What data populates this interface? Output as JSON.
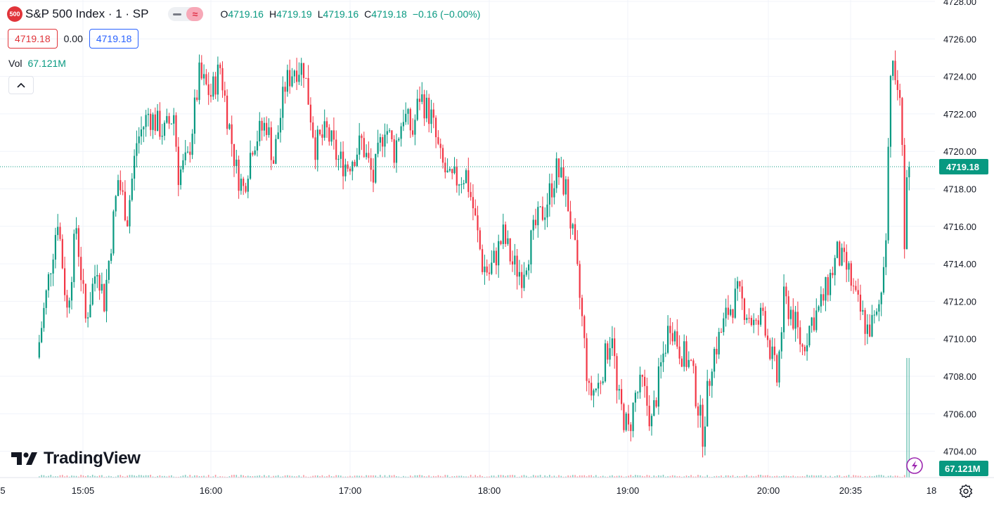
{
  "header": {
    "badge": "500",
    "symbol_title": "S&P 500 Index · 1 · SP",
    "ohlc": {
      "o_label": "O",
      "o": "4719.16",
      "h_label": "H",
      "h": "4719.19",
      "l_label": "L",
      "l": "4719.16",
      "c_label": "C",
      "c": "4719.18",
      "change": "−0.16 (−0.00%)"
    }
  },
  "prices": {
    "sell": "4719.18",
    "spread": "0.00",
    "buy": "4719.18"
  },
  "volume_legend": {
    "label": "Vol",
    "value": "67.121M"
  },
  "logo_text": "TradingView",
  "chart_data": {
    "type": "candlestick",
    "y_axis": {
      "ticks": [
        "4728.00",
        "4726.00",
        "4724.00",
        "4722.00",
        "4720.00",
        "4718.00",
        "4716.00",
        "4714.00",
        "4712.00",
        "4710.00",
        "4708.00",
        "4706.00",
        "4704.00"
      ],
      "range": [
        4703.5,
        4728
      ]
    },
    "x_axis": {
      "ticks": [
        "5",
        "15:05",
        "16:00",
        "17:00",
        "18:00",
        "19:00",
        "20:00",
        "20:35",
        "18"
      ]
    },
    "last_price": {
      "value": 4719.18,
      "label": "4719.18"
    },
    "last_volume": {
      "label": "67.121M"
    },
    "price_path": [
      {
        "t": "14:45",
        "p": 4709
      },
      {
        "t": "14:54",
        "p": 4716.5
      },
      {
        "t": "14:58",
        "p": 4711.5
      },
      {
        "t": "15:02",
        "p": 4716
      },
      {
        "t": "15:06",
        "p": 4711
      },
      {
        "t": "15:11",
        "p": 4714
      },
      {
        "t": "15:14",
        "p": 4712
      },
      {
        "t": "15:20",
        "p": 4718.5
      },
      {
        "t": "15:24",
        "p": 4716.5
      },
      {
        "t": "15:28",
        "p": 4720.5
      },
      {
        "t": "15:33",
        "p": 4722
      },
      {
        "t": "15:40",
        "p": 4721
      },
      {
        "t": "15:44",
        "p": 4722
      },
      {
        "t": "15:46",
        "p": 4718.8
      },
      {
        "t": "15:50",
        "p": 4719.5
      },
      {
        "t": "15:55",
        "p": 4724
      },
      {
        "t": "16:00",
        "p": 4723
      },
      {
        "t": "16:04",
        "p": 4724.5
      },
      {
        "t": "16:07",
        "p": 4722
      },
      {
        "t": "16:11",
        "p": 4719
      },
      {
        "t": "16:14",
        "p": 4718
      },
      {
        "t": "16:18",
        "p": 4720.5
      },
      {
        "t": "16:24",
        "p": 4721.5
      },
      {
        "t": "16:27",
        "p": 4719.5
      },
      {
        "t": "16:32",
        "p": 4723.5
      },
      {
        "t": "16:36",
        "p": 4724.5
      },
      {
        "t": "16:40",
        "p": 4724.5
      },
      {
        "t": "16:45",
        "p": 4720.3
      },
      {
        "t": "16:50",
        "p": 4721
      },
      {
        "t": "16:55",
        "p": 4719.5
      },
      {
        "t": "16:59",
        "p": 4719.3
      },
      {
        "t": "17:05",
        "p": 4720.5
      },
      {
        "t": "17:10",
        "p": 4718.5
      },
      {
        "t": "17:15",
        "p": 4721.5
      },
      {
        "t": "17:19",
        "p": 4720
      },
      {
        "t": "17:23",
        "p": 4722
      },
      {
        "t": "17:27",
        "p": 4721
      },
      {
        "t": "17:30",
        "p": 4723
      },
      {
        "t": "17:35",
        "p": 4721.8
      },
      {
        "t": "17:39",
        "p": 4719.5
      },
      {
        "t": "17:43",
        "p": 4718.3
      },
      {
        "t": "17:50",
        "p": 4718.8
      },
      {
        "t": "17:53",
        "p": 4717
      },
      {
        "t": "17:57",
        "p": 4714
      },
      {
        "t": "18:00",
        "p": 4713.5
      },
      {
        "t": "18:06",
        "p": 4715.5
      },
      {
        "t": "18:10",
        "p": 4714
      },
      {
        "t": "18:14",
        "p": 4713.5
      },
      {
        "t": "18:20",
        "p": 4716
      },
      {
        "t": "18:24",
        "p": 4717
      },
      {
        "t": "18:29",
        "p": 4719
      },
      {
        "t": "18:33",
        "p": 4718
      },
      {
        "t": "18:37",
        "p": 4714.5
      },
      {
        "t": "18:40",
        "p": 4711
      },
      {
        "t": "18:43",
        "p": 4707
      },
      {
        "t": "18:47",
        "p": 4707.5
      },
      {
        "t": "18:53",
        "p": 4710.5
      },
      {
        "t": "18:55",
        "p": 4707
      },
      {
        "t": "19:00",
        "p": 4705
      },
      {
        "t": "19:03",
        "p": 4707
      },
      {
        "t": "19:06",
        "p": 4707.5
      },
      {
        "t": "19:10",
        "p": 4705.5
      },
      {
        "t": "19:14",
        "p": 4708.5
      },
      {
        "t": "19:18",
        "p": 4711
      },
      {
        "t": "19:22",
        "p": 4709.5
      },
      {
        "t": "19:27",
        "p": 4708.5
      },
      {
        "t": "19:32",
        "p": 4705
      },
      {
        "t": "19:36",
        "p": 4709
      },
      {
        "t": "19:39",
        "p": 4710
      },
      {
        "t": "19:43",
        "p": 4711.5
      },
      {
        "t": "19:47",
        "p": 4712.3
      },
      {
        "t": "19:51",
        "p": 4711.5
      },
      {
        "t": "19:55",
        "p": 4710.5
      },
      {
        "t": "19:58",
        "p": 4711.5
      },
      {
        "t": "20:01",
        "p": 4709.5
      },
      {
        "t": "20:04",
        "p": 4707.8
      },
      {
        "t": "20:07",
        "p": 4712
      },
      {
        "t": "20:10",
        "p": 4711.5
      },
      {
        "t": "20:15",
        "p": 4709.5
      },
      {
        "t": "20:19",
        "p": 4711
      },
      {
        "t": "20:22",
        "p": 4711.5
      },
      {
        "t": "20:25",
        "p": 4712.5
      },
      {
        "t": "20:30",
        "p": 4714.5
      },
      {
        "t": "20:35",
        "p": 4713.5
      },
      {
        "t": "20:38",
        "p": 4712
      },
      {
        "t": "20:43",
        "p": 4710.5
      },
      {
        "t": "20:47",
        "p": 4711
      },
      {
        "t": "20:49",
        "p": 4712.5
      },
      {
        "t": "20:51",
        "p": 4716
      },
      {
        "t": "20:53",
        "p": 4724.5
      },
      {
        "t": "20:56",
        "p": 4723.5
      },
      {
        "t": "20:58",
        "p": 4721
      },
      {
        "t": "20:59",
        "p": 4715
      },
      {
        "t": "21:00",
        "p": 4718.5
      },
      {
        "t": "21:01",
        "p": 4719.18
      }
    ],
    "colors": {
      "up": "#089981",
      "down": "#f23645",
      "grid": "#f0f3fa",
      "last_line": "#089981"
    }
  }
}
